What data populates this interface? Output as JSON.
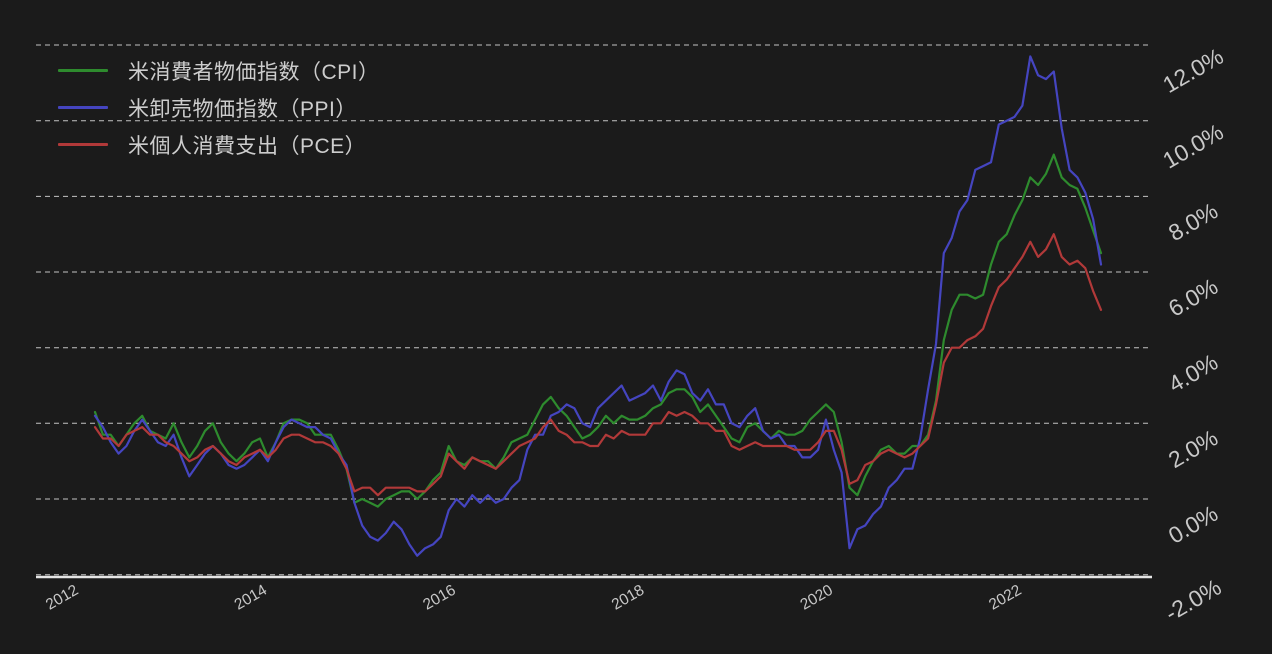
{
  "chart": {
    "background_color": "#1b1b1b",
    "text_color": "#c8c8c8",
    "grid_color": "#d6d6d6",
    "axis_color": "#e6e6e6",
    "legend_position": "top-left"
  },
  "chart_data": {
    "type": "line",
    "title": "",
    "xlabel": "",
    "ylabel": "",
    "x_axis": {
      "frequency": "monthly",
      "start_month": "2012-04",
      "end_month": "2022-12",
      "tick_years": [
        2012,
        2014,
        2016,
        2018,
        2020,
        2022
      ],
      "tick_labels": [
        "2012",
        "2014",
        "2016",
        "2018",
        "2020",
        "2022"
      ]
    },
    "y_axis": {
      "unit": "%",
      "tick_values": [
        12,
        10,
        8,
        6,
        4,
        2,
        0,
        -2
      ],
      "tick_labels": [
        "12.0%",
        "10.0%",
        "8.0%",
        "6.0%",
        "4.0%",
        "2.0%",
        "0.0%",
        "-2.0%"
      ],
      "visible_range": [
        -2.6,
        12.6
      ],
      "grid": true,
      "grid_style": "dashed"
    },
    "series": [
      {
        "name": "米消費者物価指数（CPI）",
        "short": "CPI",
        "color": "#2e8b2e",
        "values": [
          2.3,
          1.7,
          1.7,
          1.4,
          1.7,
          2.0,
          2.2,
          1.8,
          1.7,
          1.6,
          2.0,
          1.5,
          1.1,
          1.4,
          1.8,
          2.0,
          1.5,
          1.2,
          1.0,
          1.2,
          1.5,
          1.6,
          1.1,
          1.5,
          2.0,
          2.1,
          2.1,
          2.0,
          1.7,
          1.7,
          1.7,
          1.3,
          0.8,
          -0.1,
          0.0,
          -0.1,
          -0.2,
          0.0,
          0.1,
          0.2,
          0.2,
          0.0,
          0.2,
          0.5,
          0.7,
          1.4,
          1.0,
          0.9,
          1.1,
          1.0,
          1.0,
          0.8,
          1.1,
          1.5,
          1.6,
          1.7,
          2.1,
          2.5,
          2.7,
          2.4,
          2.2,
          1.9,
          1.6,
          1.7,
          1.9,
          2.2,
          2.0,
          2.2,
          2.1,
          2.1,
          2.2,
          2.4,
          2.5,
          2.8,
          2.9,
          2.9,
          2.7,
          2.3,
          2.5,
          2.2,
          1.9,
          1.6,
          1.5,
          1.9,
          2.0,
          1.8,
          1.6,
          1.8,
          1.7,
          1.7,
          1.8,
          2.1,
          2.3,
          2.5,
          2.3,
          1.5,
          0.3,
          0.1,
          0.6,
          1.0,
          1.3,
          1.4,
          1.2,
          1.2,
          1.4,
          1.4,
          1.7,
          2.6,
          4.2,
          5.0,
          5.4,
          5.4,
          5.3,
          5.4,
          6.2,
          6.8,
          7.0,
          7.5,
          7.9,
          8.5,
          8.3,
          8.6,
          9.1,
          8.5,
          8.3,
          8.2,
          7.7,
          7.1,
          6.5
        ]
      },
      {
        "name": "米卸売物価指数（PPI）",
        "short": "PPI",
        "color": "#4545c0",
        "values": [
          2.2,
          1.9,
          1.5,
          1.2,
          1.4,
          1.8,
          2.1,
          1.8,
          1.5,
          1.4,
          1.7,
          1.1,
          0.6,
          0.9,
          1.2,
          1.4,
          1.2,
          0.9,
          0.8,
          0.9,
          1.1,
          1.3,
          1.0,
          1.5,
          1.9,
          2.1,
          2.0,
          1.9,
          1.9,
          1.7,
          1.6,
          1.2,
          0.9,
          -0.1,
          -0.7,
          -1.0,
          -1.1,
          -0.9,
          -0.6,
          -0.8,
          -1.2,
          -1.5,
          -1.3,
          -1.2,
          -1.0,
          -0.3,
          0.0,
          -0.2,
          0.1,
          -0.1,
          0.1,
          -0.1,
          0.0,
          0.3,
          0.5,
          1.3,
          1.7,
          1.7,
          2.2,
          2.3,
          2.5,
          2.4,
          2.0,
          1.9,
          2.4,
          2.6,
          2.8,
          3.0,
          2.6,
          2.7,
          2.8,
          3.0,
          2.6,
          3.1,
          3.4,
          3.3,
          2.8,
          2.6,
          2.9,
          2.5,
          2.5,
          2.0,
          1.9,
          2.2,
          2.4,
          1.8,
          1.6,
          1.7,
          1.4,
          1.4,
          1.1,
          1.1,
          1.3,
          2.1,
          1.3,
          0.7,
          -1.3,
          -0.8,
          -0.7,
          -0.4,
          -0.2,
          0.3,
          0.5,
          0.8,
          0.8,
          1.6,
          2.9,
          4.1,
          6.5,
          6.9,
          7.6,
          7.9,
          8.7,
          8.8,
          8.9,
          9.9,
          10.0,
          10.1,
          10.4,
          11.7,
          11.2,
          11.1,
          11.3,
          9.8,
          8.7,
          8.5,
          8.1,
          7.4,
          6.2
        ]
      },
      {
        "name": "米個人消費支出（PCE）",
        "short": "PCE",
        "color": "#b13939",
        "values": [
          1.9,
          1.6,
          1.6,
          1.4,
          1.7,
          1.8,
          1.9,
          1.7,
          1.7,
          1.5,
          1.4,
          1.2,
          1.0,
          1.1,
          1.3,
          1.4,
          1.2,
          1.0,
          0.9,
          1.1,
          1.2,
          1.3,
          1.1,
          1.3,
          1.6,
          1.7,
          1.7,
          1.6,
          1.5,
          1.5,
          1.4,
          1.2,
          0.8,
          0.2,
          0.3,
          0.3,
          0.1,
          0.3,
          0.3,
          0.3,
          0.3,
          0.2,
          0.2,
          0.4,
          0.6,
          1.2,
          1.0,
          0.8,
          1.1,
          1.0,
          0.9,
          0.8,
          1.0,
          1.2,
          1.4,
          1.5,
          1.6,
          1.9,
          2.1,
          1.8,
          1.7,
          1.5,
          1.5,
          1.4,
          1.4,
          1.7,
          1.6,
          1.8,
          1.7,
          1.7,
          1.7,
          2.0,
          2.0,
          2.3,
          2.2,
          2.3,
          2.2,
          2.0,
          2.0,
          1.8,
          1.8,
          1.4,
          1.3,
          1.4,
          1.5,
          1.4,
          1.4,
          1.4,
          1.4,
          1.3,
          1.3,
          1.3,
          1.5,
          1.8,
          1.8,
          1.3,
          0.4,
          0.5,
          0.9,
          1.0,
          1.2,
          1.3,
          1.2,
          1.1,
          1.2,
          1.4,
          1.6,
          2.5,
          3.6,
          4.0,
          4.0,
          4.2,
          4.3,
          4.5,
          5.1,
          5.6,
          5.8,
          6.1,
          6.4,
          6.8,
          6.4,
          6.6,
          7.0,
          6.4,
          6.2,
          6.3,
          6.1,
          5.5,
          5.0
        ]
      }
    ]
  }
}
